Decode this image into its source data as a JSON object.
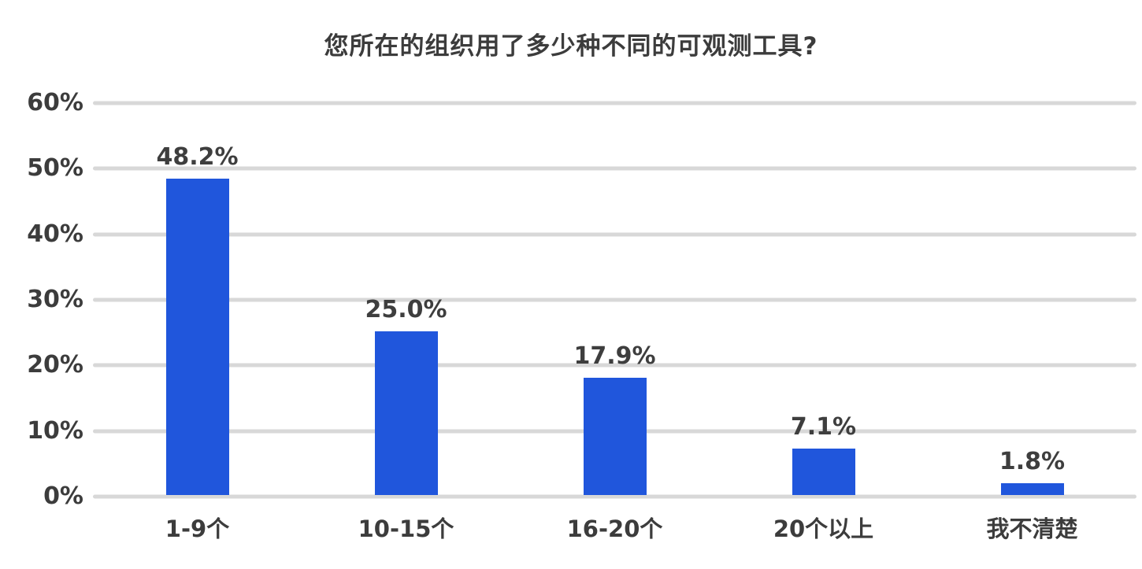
{
  "chart_data": {
    "type": "bar",
    "title": "您所在的组织用了多少种不同的可观测工具?",
    "categories": [
      "1-9个",
      "10-15个",
      "16-20个",
      "20个以上",
      "我不清楚"
    ],
    "values": [
      48.2,
      25.0,
      17.9,
      7.1,
      1.8
    ],
    "value_labels": [
      "48.2%",
      "25.0%",
      "17.9%",
      "7.1%",
      "1.8%"
    ],
    "xlabel": "",
    "ylabel": "",
    "ylim": [
      0,
      60
    ],
    "ytick_step": 10,
    "ytick_labels": [
      "0%",
      "10%",
      "20%",
      "30%",
      "40%",
      "50%",
      "60%"
    ],
    "grid": true,
    "legend": false,
    "colors": {
      "bar": "#2056DC",
      "gridline": "#D8D8D8",
      "title_text": "#3C3C3C",
      "axis_text": "#3C3C3C",
      "value_label_text": "#3E3E3E",
      "background": "#FFFFFF"
    }
  }
}
